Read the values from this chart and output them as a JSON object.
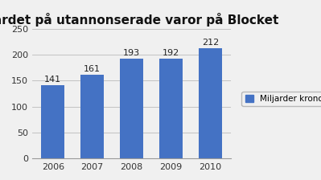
{
  "title": "Värdet på utannonserade varor på Blocket",
  "categories": [
    "2006",
    "2007",
    "2008",
    "2009",
    "2010"
  ],
  "values": [
    141,
    161,
    193,
    192,
    212
  ],
  "bar_color": "#4472C4",
  "ylim": [
    0,
    250
  ],
  "yticks": [
    0,
    50,
    100,
    150,
    200,
    250
  ],
  "legend_label": "Miljarder kronor",
  "title_fontsize": 11,
  "tick_fontsize": 8,
  "label_fontsize": 8,
  "background_color": "#f0f0f0"
}
